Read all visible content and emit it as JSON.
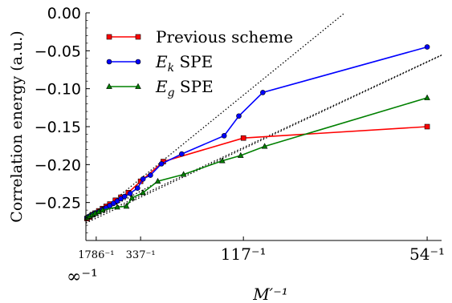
{
  "chart_data": {
    "type": "line",
    "title": "",
    "ylabel": "Correlation energy (a.u.)",
    "xlabel": "M′⁻¹",
    "xlim": [
      0,
      0.0193
    ],
    "ylim": [
      -0.3,
      0.0
    ],
    "y_ticks": [
      0.0,
      -0.05,
      -0.1,
      -0.15,
      -0.2,
      -0.25
    ],
    "y_tick_labels": [
      "0.00",
      "−0.05",
      "−0.10",
      "−0.15",
      "−0.20",
      "−0.25"
    ],
    "x_ticks": [
      {
        "value": 0,
        "label": "∞⁻¹",
        "size": "big"
      },
      {
        "value": 0.00055991,
        "label": "1786⁻¹",
        "size": "small"
      },
      {
        "value": 0.0029674,
        "label": "337⁻¹",
        "size": "small"
      },
      {
        "value": 0.008547,
        "label": "117⁻¹",
        "size": "big"
      },
      {
        "value": 0.0185185,
        "label": "54⁻¹",
        "size": "big"
      }
    ],
    "legend_position": "top-left",
    "series": [
      {
        "name": "Previous scheme",
        "legend_label": "Previous scheme",
        "color": "#ff0000",
        "marker": "square",
        "x": [
          6e-05,
          0.0002,
          0.00035,
          0.0005,
          0.0007,
          0.0009,
          0.0011,
          0.0013,
          0.0016,
          0.0019,
          0.0023,
          0.0029674,
          0.0042,
          0.008547,
          0.0185185
        ],
        "y": [
          -0.271,
          -0.269,
          -0.266,
          -0.264,
          -0.261,
          -0.258,
          -0.255,
          -0.252,
          -0.247,
          -0.243,
          -0.237,
          -0.222,
          -0.196,
          -0.165,
          -0.15
        ]
      },
      {
        "name": "E_k SPE",
        "legend_label": "SPE",
        "legend_math": "E",
        "legend_sub": "k",
        "color": "#0000ff",
        "marker": "circle",
        "x": [
          6e-05,
          0.0002,
          0.00035,
          0.0005,
          0.0007,
          0.0009,
          0.0011,
          0.0013,
          0.0015,
          0.0017,
          0.0019,
          0.0021,
          0.0024,
          0.0028,
          0.0031,
          0.0035,
          0.0041,
          0.0052,
          0.0075,
          0.0083,
          0.0096,
          0.0185185
        ],
        "y": [
          -0.27,
          -0.268,
          -0.266,
          -0.264,
          -0.262,
          -0.259,
          -0.257,
          -0.254,
          -0.251,
          -0.248,
          -0.245,
          -0.242,
          -0.238,
          -0.231,
          -0.219,
          -0.214,
          -0.199,
          -0.186,
          -0.162,
          -0.136,
          -0.105,
          -0.045
        ]
      },
      {
        "name": "E_g SPE",
        "legend_label": "SPE",
        "legend_math": "E",
        "legend_sub": "g",
        "color": "#008000",
        "marker": "triangle",
        "x": [
          6e-05,
          0.0002,
          0.00035,
          0.0005,
          0.0007,
          0.0009,
          0.0017,
          0.0022,
          0.0025,
          0.0031,
          0.0039,
          0.0053,
          0.0074,
          0.0084,
          0.0097,
          0.0185185
        ],
        "y": [
          -0.27,
          -0.268,
          -0.266,
          -0.264,
          -0.262,
          -0.26,
          -0.256,
          -0.255,
          -0.244,
          -0.237,
          -0.222,
          -0.213,
          -0.195,
          -0.188,
          -0.176,
          -0.112
        ]
      }
    ],
    "reference_lines": [
      {
        "style": "dotted",
        "color": "#000000",
        "x": [
          0,
          0.01405
        ],
        "y": [
          -0.277,
          0.0
        ]
      },
      {
        "style": "dotted",
        "color": "#000000",
        "x": [
          0,
          0.0193
        ],
        "y": [
          -0.277,
          -0.056
        ]
      },
      {
        "style": "dotted",
        "color": "#000000",
        "x": [
          0,
          0.0193
        ],
        "y": [
          -0.2745,
          -0.0555
        ]
      },
      {
        "style": "dotted",
        "color": "#000000",
        "x": [
          0.0001,
          0.0041
        ],
        "y": [
          -0.2722,
          -0.2205
        ]
      }
    ]
  }
}
